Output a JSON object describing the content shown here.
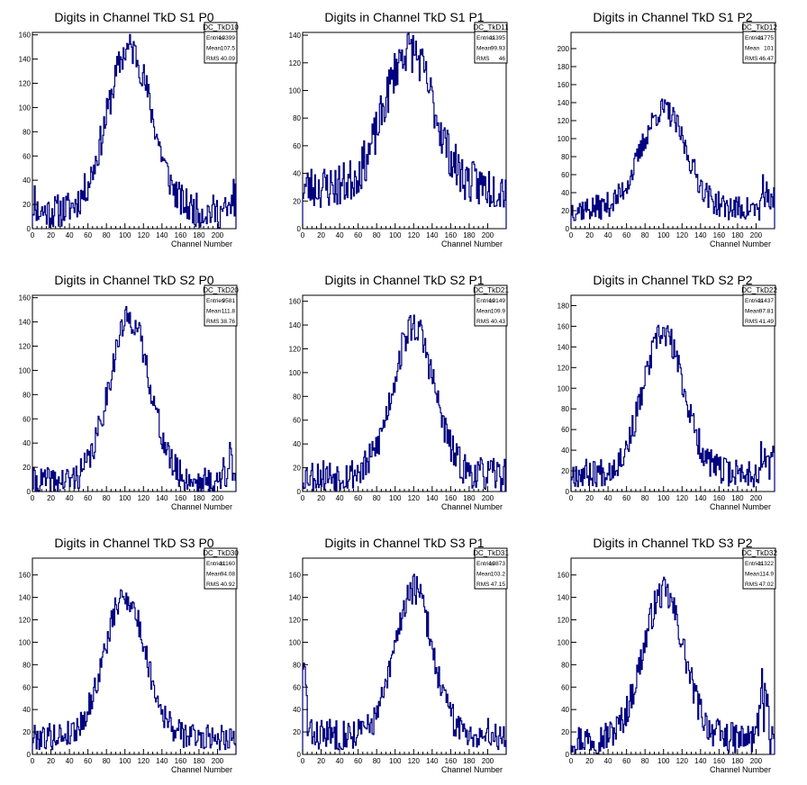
{
  "chart_data": [
    {
      "type": "bar",
      "title": "Digits in Channel TkD S1 P0",
      "xlabel": "Channel Number",
      "ylabel": "",
      "xlim": [
        0,
        220
      ],
      "ylim": [
        0,
        162
      ],
      "xticks": [
        "0",
        "20",
        "40",
        "60",
        "80",
        "100",
        "120",
        "140",
        "160",
        "180",
        "200"
      ],
      "yticks": [
        "0",
        "20",
        "40",
        "60",
        "80",
        "100",
        "120",
        "140",
        "160"
      ],
      "stats": {
        "name": "DC_TkD10",
        "rows": [
          [
            "Entries",
            "10399"
          ],
          [
            "Mean",
            "107.5"
          ],
          [
            "RMS",
            "40.09"
          ]
        ]
      },
      "shape": {
        "c": 105,
        "s": 24,
        "peak": 135,
        "base": 14,
        "noise": 14,
        "seed": 11,
        "edge": "both"
      }
    },
    {
      "type": "bar",
      "title": "Digits in Channel TkD S1 P1",
      "xlabel": "Channel Number",
      "ylabel": "",
      "xlim": [
        0,
        220
      ],
      "ylim": [
        0,
        142
      ],
      "xticks": [
        "0",
        "20",
        "40",
        "60",
        "80",
        "100",
        "120",
        "140",
        "160",
        "180",
        "200"
      ],
      "yticks": [
        "0",
        "20",
        "40",
        "60",
        "80",
        "100",
        "120",
        "140"
      ],
      "stats": {
        "name": "DC_TkD11",
        "rows": [
          [
            "Entries",
            "11395"
          ],
          [
            "Mean",
            "99.93"
          ],
          [
            "RMS",
            "46"
          ]
        ]
      },
      "shape": {
        "c": 115,
        "s": 26,
        "peak": 100,
        "base": 30,
        "noise": 16,
        "seed": 23,
        "edge": "none"
      }
    },
    {
      "type": "bar",
      "title": "Digits in Channel TkD S1 P2",
      "xlabel": "Channel Number",
      "ylabel": "",
      "xlim": [
        0,
        220
      ],
      "ylim": [
        0,
        218
      ],
      "xticks": [
        "0",
        "20",
        "40",
        "60",
        "80",
        "100",
        "120",
        "140",
        "160",
        "180",
        "200"
      ],
      "yticks": [
        "0",
        "20",
        "40",
        "60",
        "80",
        "100",
        "120",
        "140",
        "160",
        "180",
        "200"
      ],
      "stats": {
        "name": "DC_TkD12",
        "rows": [
          [
            "Entries",
            "11775"
          ],
          [
            "Mean",
            "101"
          ],
          [
            "RMS",
            "46.47"
          ]
        ]
      },
      "shape": {
        "c": 100,
        "s": 24,
        "peak": 110,
        "base": 22,
        "noise": 14,
        "seed": 37,
        "edge": "right"
      }
    },
    {
      "type": "bar",
      "title": "Digits in Channel TkD S2 P0",
      "xlabel": "Channel Number",
      "ylabel": "",
      "xlim": [
        0,
        220
      ],
      "ylim": [
        0,
        162
      ],
      "xticks": [
        "0",
        "20",
        "40",
        "60",
        "80",
        "100",
        "120",
        "140",
        "160",
        "180",
        "200"
      ],
      "yticks": [
        "0",
        "20",
        "40",
        "60",
        "80",
        "100",
        "120",
        "140",
        "160"
      ],
      "stats": {
        "name": "DC_TkD20",
        "rows": [
          [
            "Entries",
            "9581"
          ],
          [
            "Mean",
            "111.8"
          ],
          [
            "RMS",
            "38.76"
          ]
        ]
      },
      "shape": {
        "c": 105,
        "s": 22,
        "peak": 135,
        "base": 8,
        "noise": 12,
        "seed": 41,
        "edge": "right"
      }
    },
    {
      "type": "bar",
      "title": "Digits in Channel TkD S2 P1",
      "xlabel": "Channel Number",
      "ylabel": "",
      "xlim": [
        0,
        220
      ],
      "ylim": [
        0,
        165
      ],
      "xticks": [
        "0",
        "20",
        "40",
        "60",
        "80",
        "100",
        "120",
        "140",
        "160",
        "180",
        "200"
      ],
      "yticks": [
        "0",
        "20",
        "40",
        "60",
        "80",
        "100",
        "120",
        "140",
        "160"
      ],
      "stats": {
        "name": "DC_TkD21",
        "rows": [
          [
            "Entries",
            "10149"
          ],
          [
            "Mean",
            "109.9"
          ],
          [
            "RMS",
            "40.43"
          ]
        ]
      },
      "shape": {
        "c": 120,
        "s": 22,
        "peak": 125,
        "base": 14,
        "noise": 14,
        "seed": 53,
        "edge": "none"
      }
    },
    {
      "type": "bar",
      "title": "Digits in Channel TkD S2 P2",
      "xlabel": "Channel Number",
      "ylabel": "",
      "xlim": [
        0,
        220
      ],
      "ylim": [
        0,
        190
      ],
      "xticks": [
        "0",
        "20",
        "40",
        "60",
        "80",
        "100",
        "120",
        "140",
        "160",
        "180",
        "200"
      ],
      "yticks": [
        "0",
        "20",
        "40",
        "60",
        "80",
        "100",
        "120",
        "140",
        "160",
        "180"
      ],
      "stats": {
        "name": "DC_TkD22",
        "rows": [
          [
            "Entries",
            "11437"
          ],
          [
            "Mean",
            "97.81"
          ],
          [
            "RMS",
            "41.49"
          ]
        ]
      },
      "shape": {
        "c": 100,
        "s": 22,
        "peak": 135,
        "base": 18,
        "noise": 14,
        "seed": 67,
        "edge": "right"
      }
    },
    {
      "type": "bar",
      "title": "Digits in Channel TkD S3 P0",
      "xlabel": "Channel Number",
      "ylabel": "",
      "xlim": [
        0,
        220
      ],
      "ylim": [
        0,
        175
      ],
      "xticks": [
        "0",
        "20",
        "40",
        "60",
        "80",
        "100",
        "120",
        "140",
        "160",
        "180",
        "200"
      ],
      "yticks": [
        "0",
        "20",
        "40",
        "60",
        "80",
        "100",
        "120",
        "140",
        "160"
      ],
      "stats": {
        "name": "DC_TkD30",
        "rows": [
          [
            "Entries",
            "11160"
          ],
          [
            "Mean",
            "94.08"
          ],
          [
            "RMS",
            "40.92"
          ]
        ]
      },
      "shape": {
        "c": 100,
        "s": 22,
        "peak": 125,
        "base": 16,
        "noise": 12,
        "seed": 79,
        "edge": "none"
      }
    },
    {
      "type": "bar",
      "title": "Digits in Channel TkD S3 P1",
      "xlabel": "Channel Number",
      "ylabel": "",
      "xlim": [
        0,
        220
      ],
      "ylim": [
        0,
        175
      ],
      "xticks": [
        "0",
        "20",
        "40",
        "60",
        "80",
        "100",
        "120",
        "140",
        "160",
        "180",
        "200"
      ],
      "yticks": [
        "0",
        "20",
        "40",
        "60",
        "80",
        "100",
        "120",
        "140",
        "160"
      ],
      "stats": {
        "name": "DC_TkD31",
        "rows": [
          [
            "Entries",
            "10873"
          ],
          [
            "Mean",
            "103.2"
          ],
          [
            "RMS",
            "47.15"
          ]
        ]
      },
      "shape": {
        "c": 120,
        "s": 20,
        "peak": 130,
        "base": 18,
        "noise": 14,
        "seed": 83,
        "edge": "left"
      }
    },
    {
      "type": "bar",
      "title": "Digits in Channel TkD S3 P2",
      "xlabel": "Channel Number",
      "ylabel": "",
      "xlim": [
        0,
        220
      ],
      "ylim": [
        0,
        175
      ],
      "xticks": [
        "0",
        "20",
        "40",
        "60",
        "80",
        "100",
        "120",
        "140",
        "160",
        "180",
        "200"
      ],
      "yticks": [
        "0",
        "20",
        "40",
        "60",
        "80",
        "100",
        "120",
        "140",
        "160"
      ],
      "stats": {
        "name": "DC_TkD32",
        "rows": [
          [
            "Entries",
            "11322"
          ],
          [
            "Mean",
            "114.9"
          ],
          [
            "RMS",
            "47.02"
          ]
        ]
      },
      "shape": {
        "c": 100,
        "s": 22,
        "peak": 130,
        "base": 14,
        "noise": 14,
        "seed": 97,
        "edge": "rightbig"
      }
    }
  ],
  "colors": {
    "line": "#000080",
    "axis": "#000000",
    "background": "#ffffff"
  }
}
